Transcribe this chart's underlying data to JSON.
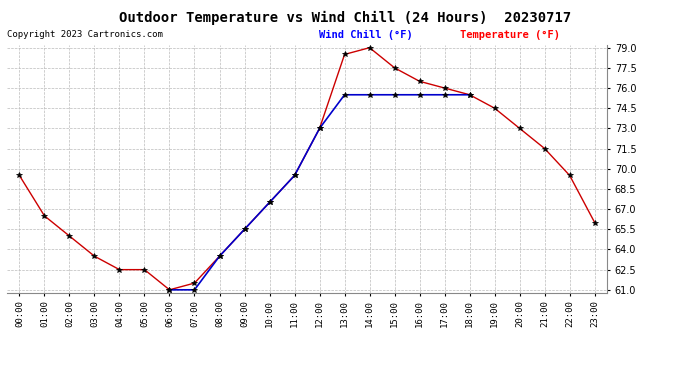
{
  "title": "Outdoor Temperature vs Wind Chill (24 Hours)  20230717",
  "copyright": "Copyright 2023 Cartronics.com",
  "legend_wind_chill": "Wind Chill (°F)",
  "legend_temperature": "Temperature (°F)",
  "hours": [
    0,
    1,
    2,
    3,
    4,
    5,
    6,
    7,
    8,
    9,
    10,
    11,
    12,
    13,
    14,
    15,
    16,
    17,
    18,
    19,
    20,
    21,
    22,
    23
  ],
  "temperature": [
    69.5,
    66.5,
    65.0,
    63.5,
    62.5,
    62.5,
    61.0,
    61.5,
    63.5,
    65.5,
    67.5,
    69.5,
    73.0,
    78.5,
    79.0,
    77.5,
    76.5,
    76.0,
    75.5,
    74.5,
    73.0,
    71.5,
    69.5,
    66.0
  ],
  "wind_chill_hours": [
    6,
    7,
    8,
    9,
    10,
    11,
    12,
    13,
    14,
    15,
    16,
    17,
    18
  ],
  "wind_chill_vals": [
    61.0,
    61.0,
    63.5,
    65.5,
    67.5,
    69.5,
    73.0,
    75.5,
    75.5,
    75.5,
    75.5,
    75.5,
    75.5
  ],
  "ylim": [
    61.0,
    79.0
  ],
  "yticks": [
    61.0,
    62.5,
    64.0,
    65.5,
    67.0,
    68.5,
    70.0,
    71.5,
    73.0,
    74.5,
    76.0,
    77.5,
    79.0
  ],
  "background_color": "#ffffff",
  "plot_bg_color": "#ffffff",
  "grid_color": "#bbbbbb",
  "temp_color": "#cc0000",
  "wind_color": "#0000cc",
  "marker_color": "#000000",
  "title_color": "#000000",
  "copyright_color": "#000000",
  "legend_wind_color": "#0000ff",
  "legend_temp_color": "#ff0000",
  "title_fontsize": 10,
  "copyright_fontsize": 6.5,
  "legend_fontsize": 7.5,
  "tick_fontsize": 6.5,
  "ytick_fontsize": 7
}
